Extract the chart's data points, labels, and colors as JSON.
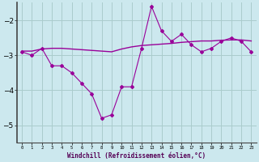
{
  "xlabel": "Windchill (Refroidissement éolien,°C)",
  "x": [
    0,
    1,
    2,
    3,
    4,
    5,
    6,
    7,
    8,
    9,
    10,
    11,
    12,
    13,
    14,
    15,
    16,
    17,
    18,
    19,
    20,
    21,
    22,
    23
  ],
  "y_measured": [
    -2.9,
    -3.0,
    -2.8,
    -3.3,
    -3.3,
    -3.5,
    -3.8,
    -4.1,
    -4.8,
    -4.7,
    -3.9,
    -3.9,
    -2.8,
    -1.6,
    -2.3,
    -2.6,
    -2.4,
    -2.7,
    -2.9,
    -2.8,
    -2.6,
    -2.5,
    -2.6,
    -2.9
  ],
  "y_trend": [
    -2.88,
    -2.88,
    -2.82,
    -2.8,
    -2.8,
    -2.82,
    -2.84,
    -2.86,
    -2.88,
    -2.9,
    -2.82,
    -2.76,
    -2.72,
    -2.7,
    -2.68,
    -2.66,
    -2.63,
    -2.61,
    -2.59,
    -2.59,
    -2.57,
    -2.56,
    -2.56,
    -2.59
  ],
  "line_color": "#990099",
  "trend_color": "#990099",
  "bg_color": "#cce8ee",
  "grid_color": "#aacccc",
  "ylim": [
    -5.5,
    -1.5
  ],
  "yticks": [
    -5,
    -4,
    -3,
    -2
  ],
  "xlim": [
    -0.5,
    23.5
  ],
  "xtick_labels": [
    "0",
    "1",
    "2",
    "3",
    "4",
    "5",
    "6",
    "7",
    "8",
    "9",
    "10",
    "11",
    "12",
    "13",
    "14",
    "15",
    "16",
    "17",
    "18",
    "19",
    "20",
    "21",
    "22",
    "23"
  ]
}
